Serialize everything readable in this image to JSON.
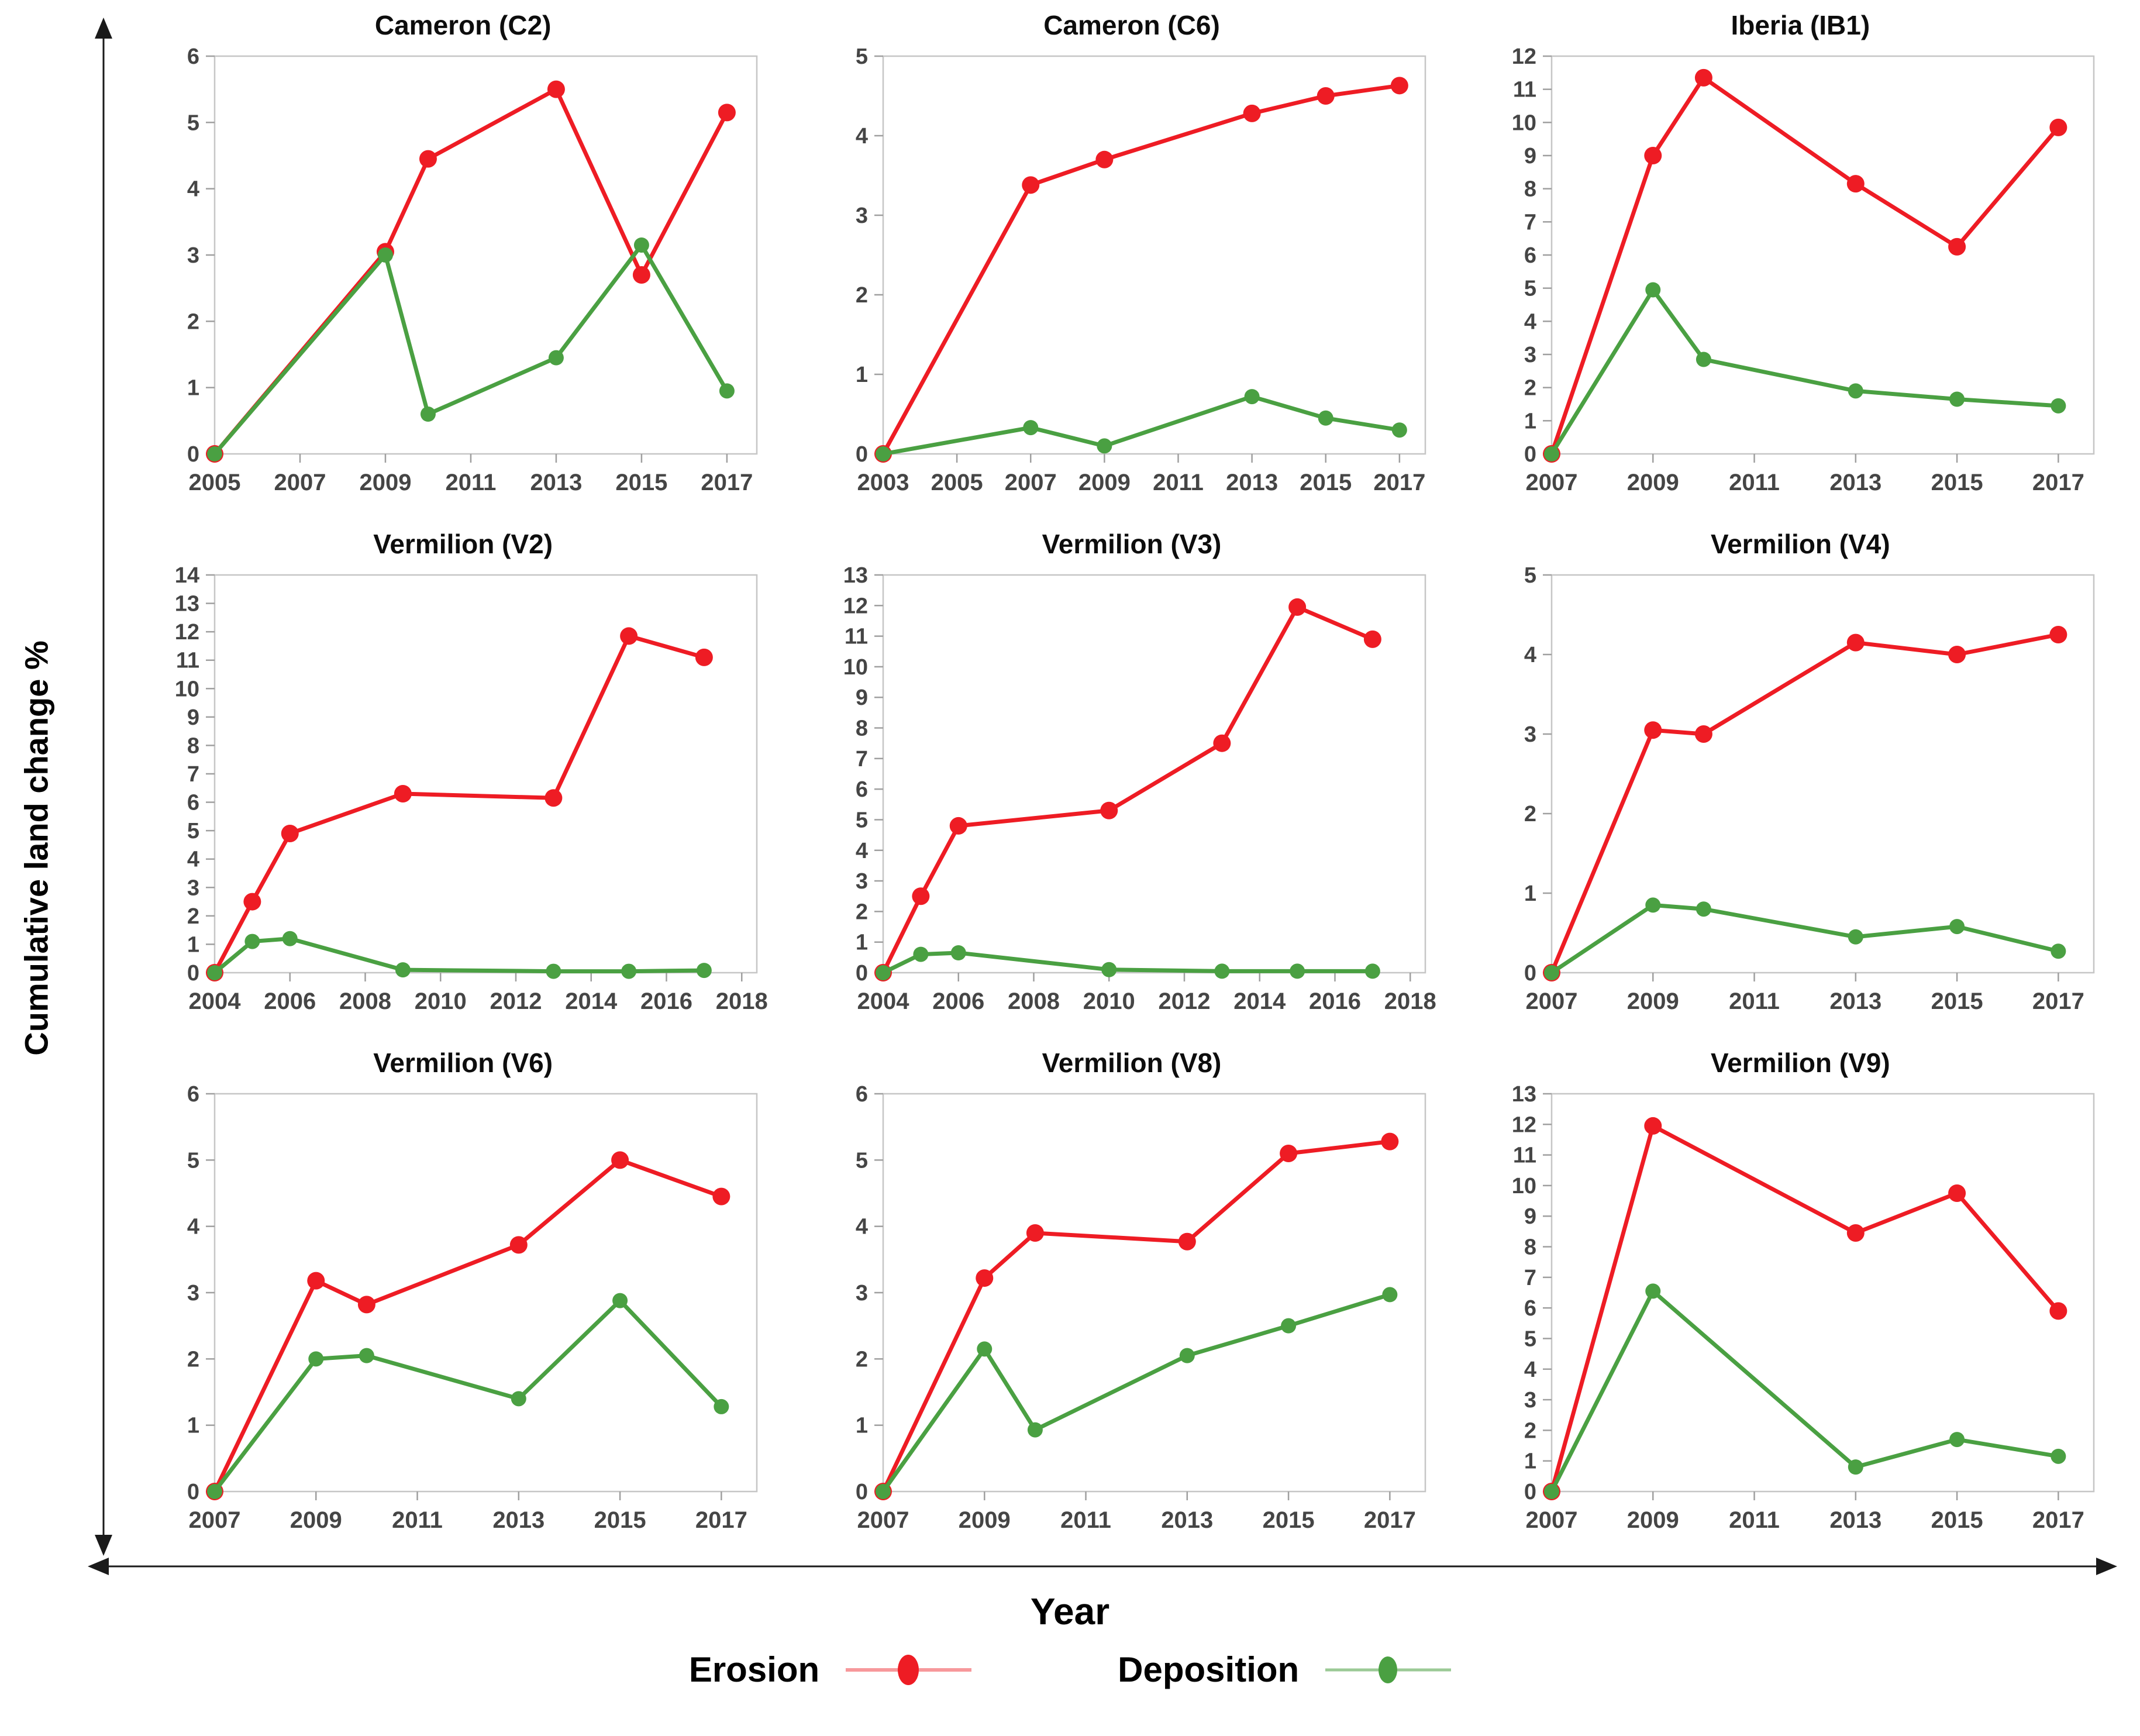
{
  "figure": {
    "y_axis_label": "Cumulative land change %",
    "x_axis_label": "Year",
    "legend": [
      {
        "name": "Erosion",
        "color": "#EE1C24"
      },
      {
        "name": "Deposition",
        "color": "#4AA042"
      }
    ],
    "axis_border_color": "#c6c6c6",
    "tick_color": "#9f9f9f",
    "tick_label_color": "#454545"
  },
  "chart_data": [
    {
      "type": "line",
      "title": "Cameron (C2)",
      "x_ticks": [
        2005,
        2007,
        2009,
        2011,
        2013,
        2015,
        2017
      ],
      "x_range": [
        2005,
        2017.7
      ],
      "y_range": [
        0,
        6
      ],
      "y_tick_step": 1,
      "series": [
        {
          "name": "Erosion",
          "color": "#EE1C24",
          "points": [
            [
              2005,
              0
            ],
            [
              2009,
              3.05
            ],
            [
              2010,
              4.45
            ],
            [
              2013,
              5.5
            ],
            [
              2015,
              2.7
            ],
            [
              2017,
              5.15
            ]
          ]
        },
        {
          "name": "Deposition",
          "color": "#4AA042",
          "points": [
            [
              2005,
              0
            ],
            [
              2009,
              3.0
            ],
            [
              2010,
              0.6
            ],
            [
              2013,
              1.45
            ],
            [
              2015,
              3.15
            ],
            [
              2017,
              0.95
            ]
          ]
        }
      ]
    },
    {
      "type": "line",
      "title": "Cameron (C6)",
      "x_ticks": [
        2003,
        2005,
        2007,
        2009,
        2011,
        2013,
        2015,
        2017
      ],
      "x_range": [
        2003,
        2017.7
      ],
      "y_range": [
        0,
        5
      ],
      "y_tick_step": 1,
      "series": [
        {
          "name": "Erosion",
          "color": "#EE1C24",
          "points": [
            [
              2003,
              0
            ],
            [
              2007,
              3.38
            ],
            [
              2009,
              3.7
            ],
            [
              2013,
              4.28
            ],
            [
              2015,
              4.5
            ],
            [
              2017,
              4.63
            ]
          ]
        },
        {
          "name": "Deposition",
          "color": "#4AA042",
          "points": [
            [
              2003,
              0
            ],
            [
              2007,
              0.33
            ],
            [
              2009,
              0.1
            ],
            [
              2013,
              0.72
            ],
            [
              2015,
              0.45
            ],
            [
              2017,
              0.3
            ]
          ]
        }
      ]
    },
    {
      "type": "line",
      "title": "Iberia (IB1)",
      "x_ticks": [
        2007,
        2009,
        2011,
        2013,
        2015,
        2017
      ],
      "x_range": [
        2007,
        2017.7
      ],
      "y_range": [
        0,
        12
      ],
      "y_tick_step": 1,
      "series": [
        {
          "name": "Erosion",
          "color": "#EE1C24",
          "points": [
            [
              2007,
              0
            ],
            [
              2009,
              9.0
            ],
            [
              2010,
              11.35
            ],
            [
              2013,
              8.15
            ],
            [
              2015,
              6.25
            ],
            [
              2017,
              9.85
            ]
          ]
        },
        {
          "name": "Deposition",
          "color": "#4AA042",
          "points": [
            [
              2007,
              0
            ],
            [
              2009,
              4.95
            ],
            [
              2010,
              2.85
            ],
            [
              2013,
              1.9
            ],
            [
              2015,
              1.65
            ],
            [
              2017,
              1.45
            ]
          ]
        }
      ]
    },
    {
      "type": "line",
      "title": "Vermilion (V2)",
      "x_ticks": [
        2004,
        2006,
        2008,
        2010,
        2012,
        2014,
        2016,
        2018
      ],
      "x_range": [
        2004,
        2018.4
      ],
      "y_range": [
        0,
        14
      ],
      "y_tick_step": 1,
      "series": [
        {
          "name": "Erosion",
          "color": "#EE1C24",
          "points": [
            [
              2004,
              0
            ],
            [
              2005,
              2.5
            ],
            [
              2006,
              4.9
            ],
            [
              2009,
              6.3
            ],
            [
              2013,
              6.15
            ],
            [
              2015,
              11.85
            ],
            [
              2017,
              11.1
            ]
          ]
        },
        {
          "name": "Deposition",
          "color": "#4AA042",
          "points": [
            [
              2004,
              0
            ],
            [
              2005,
              1.1
            ],
            [
              2006,
              1.2
            ],
            [
              2009,
              0.1
            ],
            [
              2013,
              0.05
            ],
            [
              2015,
              0.05
            ],
            [
              2017,
              0.08
            ]
          ]
        }
      ]
    },
    {
      "type": "line",
      "title": "Vermilion (V3)",
      "x_ticks": [
        2004,
        2006,
        2008,
        2010,
        2012,
        2014,
        2016,
        2018
      ],
      "x_range": [
        2004,
        2018.4
      ],
      "y_range": [
        0,
        13
      ],
      "y_tick_step": 1,
      "series": [
        {
          "name": "Erosion",
          "color": "#EE1C24",
          "points": [
            [
              2004,
              0
            ],
            [
              2005,
              2.5
            ],
            [
              2006,
              4.8
            ],
            [
              2010,
              5.3
            ],
            [
              2013,
              7.5
            ],
            [
              2015,
              11.95
            ],
            [
              2017,
              10.9
            ]
          ]
        },
        {
          "name": "Deposition",
          "color": "#4AA042",
          "points": [
            [
              2004,
              0
            ],
            [
              2005,
              0.6
            ],
            [
              2006,
              0.65
            ],
            [
              2010,
              0.1
            ],
            [
              2013,
              0.05
            ],
            [
              2015,
              0.05
            ],
            [
              2017,
              0.05
            ]
          ]
        }
      ]
    },
    {
      "type": "line",
      "title": "Vermilion (V4)",
      "x_ticks": [
        2007,
        2009,
        2011,
        2013,
        2015,
        2017
      ],
      "x_range": [
        2007,
        2017.7
      ],
      "y_range": [
        0,
        5
      ],
      "y_tick_step": 1,
      "series": [
        {
          "name": "Erosion",
          "color": "#EE1C24",
          "points": [
            [
              2007,
              0
            ],
            [
              2009,
              3.05
            ],
            [
              2010,
              3.0
            ],
            [
              2013,
              4.15
            ],
            [
              2015,
              4.0
            ],
            [
              2017,
              4.25
            ]
          ]
        },
        {
          "name": "Deposition",
          "color": "#4AA042",
          "points": [
            [
              2007,
              0
            ],
            [
              2009,
              0.85
            ],
            [
              2010,
              0.8
            ],
            [
              2013,
              0.45
            ],
            [
              2015,
              0.58
            ],
            [
              2017,
              0.27
            ]
          ]
        }
      ]
    },
    {
      "type": "line",
      "title": "Vermilion (V6)",
      "x_ticks": [
        2007,
        2009,
        2011,
        2013,
        2015,
        2017
      ],
      "x_range": [
        2007,
        2017.7
      ],
      "y_range": [
        0,
        6
      ],
      "y_tick_step": 1,
      "series": [
        {
          "name": "Erosion",
          "color": "#EE1C24",
          "points": [
            [
              2007,
              0
            ],
            [
              2009,
              3.18
            ],
            [
              2010,
              2.82
            ],
            [
              2013,
              3.72
            ],
            [
              2015,
              5.0
            ],
            [
              2017,
              4.45
            ]
          ]
        },
        {
          "name": "Deposition",
          "color": "#4AA042",
          "points": [
            [
              2007,
              0
            ],
            [
              2009,
              2.0
            ],
            [
              2010,
              2.05
            ],
            [
              2013,
              1.4
            ],
            [
              2015,
              2.88
            ],
            [
              2017,
              1.28
            ]
          ]
        }
      ]
    },
    {
      "type": "line",
      "title": "Vermilion (V8)",
      "x_ticks": [
        2007,
        2009,
        2011,
        2013,
        2015,
        2017
      ],
      "x_range": [
        2007,
        2017.7
      ],
      "y_range": [
        0,
        6
      ],
      "y_tick_step": 1,
      "series": [
        {
          "name": "Erosion",
          "color": "#EE1C24",
          "points": [
            [
              2007,
              0
            ],
            [
              2009,
              3.22
            ],
            [
              2010,
              3.9
            ],
            [
              2013,
              3.77
            ],
            [
              2015,
              5.1
            ],
            [
              2017,
              5.28
            ]
          ]
        },
        {
          "name": "Deposition",
          "color": "#4AA042",
          "points": [
            [
              2007,
              0
            ],
            [
              2009,
              2.15
            ],
            [
              2010,
              0.93
            ],
            [
              2013,
              2.05
            ],
            [
              2015,
              2.5
            ],
            [
              2017,
              2.97
            ]
          ]
        }
      ]
    },
    {
      "type": "line",
      "title": "Vermilion (V9)",
      "x_ticks": [
        2007,
        2009,
        2011,
        2013,
        2015,
        2017
      ],
      "x_range": [
        2007,
        2017.7
      ],
      "y_range": [
        0,
        13
      ],
      "y_tick_step": 1,
      "series": [
        {
          "name": "Erosion",
          "color": "#EE1C24",
          "points": [
            [
              2007,
              0
            ],
            [
              2009,
              11.95
            ],
            [
              2013,
              8.45
            ],
            [
              2015,
              9.75
            ],
            [
              2017,
              5.9
            ]
          ]
        },
        {
          "name": "Deposition",
          "color": "#4AA042",
          "points": [
            [
              2007,
              0
            ],
            [
              2009,
              6.55
            ],
            [
              2013,
              0.8
            ],
            [
              2015,
              1.7
            ],
            [
              2017,
              1.15
            ]
          ]
        }
      ]
    }
  ]
}
